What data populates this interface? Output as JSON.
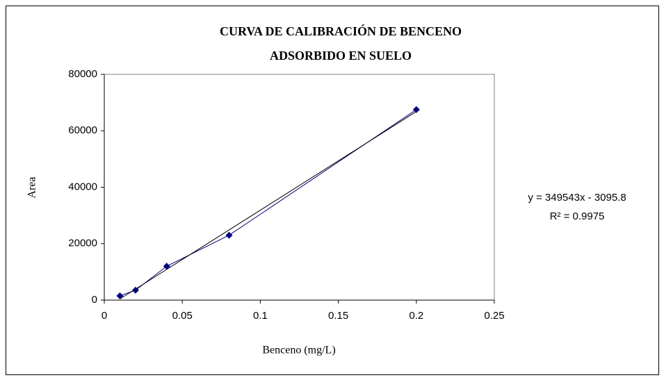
{
  "chart_data": {
    "type": "scatter",
    "title": [
      "CURVA DE CALIBRACIÓN DE BENCENO",
      "ADSORBIDO EN SUELO"
    ],
    "x_label": "Benceno (mg/L)",
    "y_label": "Area",
    "x": [
      0.01,
      0.02,
      0.04,
      0.08,
      0.2
    ],
    "series": [
      {
        "color": "#000080",
        "values": [
          1500,
          3500,
          12000,
          23000,
          67500
        ]
      }
    ],
    "trendline": {
      "color": "#000000",
      "x": [
        0.01,
        0.2
      ],
      "values": [
        400,
        66813
      ]
    },
    "annotations": [
      "y = 349543x - 3095.8",
      "R² = 0.9975"
    ],
    "xlim": [
      0,
      0.25
    ],
    "xticks": [
      0,
      0.05,
      0.1,
      0.15,
      0.2,
      0.25
    ],
    "ylim": [
      0,
      80000
    ],
    "yticks": [
      0,
      20000,
      40000,
      60000,
      80000
    ],
    "grid": false
  }
}
